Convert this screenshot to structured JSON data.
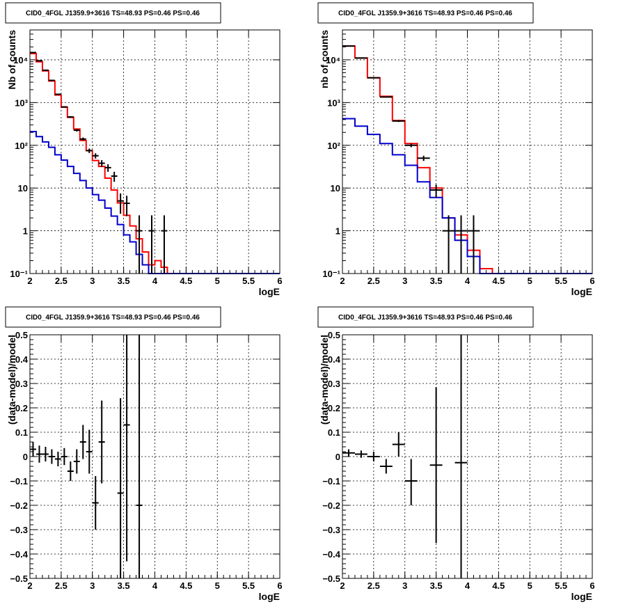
{
  "canvas": {
    "background": "#ffffff"
  },
  "colors": {
    "data": "#000000",
    "total_model": "#ff0000",
    "component_model": "#0000cc"
  },
  "chart_data": [
    {
      "type": "line",
      "title": "CID0_4FGL J1359.9+3616 TS=48.93 PS=0.46 PS=0.46",
      "xlabel": "logE",
      "ylabel": "Nb of counts",
      "xlim": [
        2,
        6
      ],
      "ylim": [
        0.1,
        50000
      ],
      "yscale": "log",
      "grid": true,
      "x_ticks": [
        2,
        2.5,
        3,
        3.5,
        4,
        4.5,
        5,
        5.5,
        6
      ],
      "x_tick_labels": [
        "2",
        "2.5",
        "3",
        "3.5",
        "4",
        "4.5",
        "5",
        "5.5",
        "6"
      ],
      "y_ticks": [
        0.1,
        1,
        10,
        100,
        1000,
        10000
      ],
      "y_tick_labels": [
        "10⁻¹",
        "1",
        "10",
        "10²",
        "10³",
        "10⁴"
      ],
      "bin_edges": [
        2.0,
        2.1,
        2.2,
        2.3,
        2.4,
        2.5,
        2.6,
        2.7,
        2.8,
        2.9,
        3.0,
        3.1,
        3.2,
        3.3,
        3.4,
        3.5,
        3.6,
        3.7,
        3.8,
        3.9,
        4.0,
        4.1,
        4.2,
        4.3,
        4.4,
        4.5,
        4.6,
        4.7,
        4.8,
        4.9,
        5.0,
        5.1,
        5.2,
        5.3,
        5.4,
        5.5,
        5.6,
        5.7,
        5.8,
        5.9,
        6.0
      ],
      "series": [
        {
          "role": "total_model",
          "values": [
            14000,
            9000,
            5500,
            3200,
            1500,
            780,
            450,
            240,
            130,
            75,
            44,
            32,
            17,
            9,
            4.5,
            2.3,
            1.3,
            0.65,
            0.32,
            0.16,
            0.2,
            0.14,
            0.1,
            0.1,
            0.1,
            0.1,
            0.1,
            0.1,
            0.1,
            0.1,
            0.1,
            0.1,
            0.1,
            0.1,
            0.1,
            0.1,
            0.1,
            0.1,
            0.1,
            0.1
          ]
        },
        {
          "role": "component_model",
          "values": [
            210,
            160,
            120,
            90,
            60,
            45,
            32,
            22,
            15,
            10,
            7,
            5.2,
            3.4,
            2.2,
            1.4,
            0.8,
            0.55,
            0.28,
            0.16,
            0.1,
            0.1,
            0.1,
            0.1,
            0.1,
            0.1,
            0.1,
            0.1,
            0.1,
            0.1,
            0.1,
            0.1,
            0.1,
            0.1,
            0.1,
            0.1,
            0.1,
            0.1,
            0.1,
            0.1,
            0.1
          ]
        },
        {
          "role": "data",
          "x": [
            2.05,
            2.15,
            2.25,
            2.35,
            2.45,
            2.55,
            2.65,
            2.75,
            2.85,
            2.95,
            3.05,
            3.15,
            3.25,
            3.35,
            3.45,
            3.55,
            3.75,
            3.95,
            4.15
          ],
          "y": [
            14800,
            9500,
            5700,
            3300,
            1560,
            790,
            460,
            225,
            140,
            75,
            57,
            38,
            30,
            19,
            5,
            4.4,
            1,
            1,
            1
          ],
          "yerr_low": [
            120,
            100,
            75,
            58,
            40,
            28,
            21,
            15,
            12,
            9,
            8,
            7,
            6,
            5,
            2.5,
            2.2,
            0.9,
            0.9,
            0.9
          ],
          "yerr_high": [
            120,
            100,
            75,
            58,
            40,
            28,
            21,
            15,
            12,
            9,
            8,
            7,
            6,
            5,
            2.5,
            2.2,
            1.3,
            1.3,
            1.3
          ]
        }
      ]
    },
    {
      "type": "line",
      "title": "CID0_4FGL J1359.9+3616 TS=48.93 PS=0.46 PS=0.46",
      "xlabel": "logE",
      "ylabel": "nb of counts",
      "xlim": [
        2,
        6
      ],
      "ylim": [
        0.1,
        50000
      ],
      "yscale": "log",
      "grid": true,
      "x_ticks": [
        2,
        2.5,
        3,
        3.5,
        4,
        4.5,
        5,
        5.5,
        6
      ],
      "x_tick_labels": [
        "2",
        "2.5",
        "3",
        "3.5",
        "4",
        "4.5",
        "5",
        "5.5",
        "6"
      ],
      "y_ticks": [
        0.1,
        1,
        10,
        100,
        1000,
        10000
      ],
      "y_tick_labels": [
        "10⁻¹",
        "1",
        "10",
        "10²",
        "10³",
        "10⁴"
      ],
      "bin_edges": [
        2.0,
        2.2,
        2.4,
        2.6,
        2.8,
        3.0,
        3.2,
        3.4,
        3.6,
        3.8,
        4.0,
        4.2,
        4.4,
        4.6,
        4.8,
        5.0,
        5.2,
        5.4,
        5.6,
        5.8,
        6.0
      ],
      "series": [
        {
          "role": "total_model",
          "values": [
            21000,
            11000,
            3800,
            1400,
            380,
            110,
            30,
            10,
            2,
            0.8,
            0.35,
            0.13,
            0.1,
            0.1,
            0.1,
            0.1,
            0.1,
            0.1,
            0.1,
            0.1
          ]
        },
        {
          "role": "component_model",
          "values": [
            420,
            280,
            180,
            110,
            60,
            34,
            14,
            6,
            2,
            0.6,
            0.25,
            0.1,
            0.1,
            0.1,
            0.1,
            0.1,
            0.1,
            0.1,
            0.1,
            0.1
          ]
        },
        {
          "role": "data",
          "x": [
            2.1,
            2.3,
            2.5,
            2.7,
            2.9,
            3.1,
            3.3,
            3.5,
            3.7,
            3.9,
            4.1
          ],
          "y": [
            21000,
            11000,
            3800,
            1350,
            370,
            100,
            50,
            9,
            1,
            1,
            1
          ],
          "yerr_low": [
            145,
            105,
            62,
            37,
            19,
            10,
            7,
            3,
            0.9,
            0.9,
            0.9
          ],
          "yerr_high": [
            145,
            105,
            62,
            37,
            19,
            10,
            7,
            3,
            1.3,
            1.3,
            1.3
          ]
        }
      ]
    },
    {
      "type": "scatter",
      "title": "CID0_4FGL J1359.9+3616 TS=48.93 PS=0.46 PS=0.46",
      "xlabel": "logE",
      "ylabel": "(data-model)/model",
      "xlim": [
        2,
        6
      ],
      "ylim": [
        -0.5,
        0.5
      ],
      "grid": true,
      "x_ticks": [
        2,
        2.5,
        3,
        3.5,
        4,
        4.5,
        5,
        5.5,
        6
      ],
      "x_tick_labels": [
        "2",
        "2.5",
        "3",
        "3.5",
        "4",
        "4.5",
        "5",
        "5.5",
        "6"
      ],
      "y_ticks": [
        -0.5,
        -0.4,
        -0.3,
        -0.2,
        -0.1,
        0,
        0.1,
        0.2,
        0.3,
        0.4,
        0.5
      ],
      "y_tick_labels": [
        "−0.5",
        "−0.4",
        "−0.3",
        "−0.2",
        "−0.1",
        "0",
        "0.1",
        "0.2",
        "0.3",
        "0.4",
        "0.5"
      ],
      "points": {
        "x": [
          2.05,
          2.15,
          2.25,
          2.35,
          2.45,
          2.55,
          2.65,
          2.75,
          2.85,
          2.95,
          3.05,
          3.15,
          3.45,
          3.55,
          3.75
        ],
        "xerr": 0.05,
        "y": [
          0.03,
          0.01,
          0.01,
          0.0,
          -0.01,
          0.0,
          -0.06,
          -0.02,
          0.06,
          0.02,
          -0.19,
          0.06,
          -0.15,
          0.13,
          -0.2
        ],
        "yerr_low": [
          0.03,
          0.035,
          0.03,
          0.03,
          0.03,
          0.035,
          0.04,
          0.05,
          0.07,
          0.09,
          0.11,
          0.17,
          0.4,
          0.56,
          0.3
        ],
        "yerr_high": [
          0.03,
          0.035,
          0.03,
          0.03,
          0.03,
          0.035,
          0.04,
          0.05,
          0.07,
          0.09,
          0.11,
          0.17,
          0.39,
          0.37,
          0.7
        ]
      }
    },
    {
      "type": "scatter",
      "title": "CID0_4FGL J1359.9+3616 TS=48.93 PS=0.46 PS=0.46",
      "xlabel": "logE",
      "ylabel": "(data-model)/model",
      "xlim": [
        2,
        6
      ],
      "ylim": [
        -0.5,
        0.5
      ],
      "grid": true,
      "x_ticks": [
        2,
        2.5,
        3,
        3.5,
        4,
        4.5,
        5,
        5.5,
        6
      ],
      "x_tick_labels": [
        "2",
        "2.5",
        "3",
        "3.5",
        "4",
        "4.5",
        "5",
        "5.5",
        "6"
      ],
      "y_ticks": [
        -0.5,
        -0.4,
        -0.3,
        -0.2,
        -0.1,
        0,
        0.1,
        0.2,
        0.3,
        0.4,
        0.5
      ],
      "y_tick_labels": [
        "−0.5",
        "−0.4",
        "−0.3",
        "−0.2",
        "−0.1",
        "0",
        "0.1",
        "0.2",
        "0.3",
        "0.4",
        "0.5"
      ],
      "points": {
        "x": [
          2.1,
          2.3,
          2.5,
          2.7,
          2.9,
          3.1,
          3.5,
          3.9
        ],
        "xerr": 0.1,
        "y": [
          0.015,
          0.01,
          0.0,
          -0.04,
          0.05,
          -0.1,
          -0.035,
          -0.025
        ],
        "yerr_low": [
          0.015,
          0.015,
          0.02,
          0.03,
          0.05,
          0.1,
          0.32,
          0.475
        ],
        "yerr_high": [
          0.015,
          0.015,
          0.02,
          0.03,
          0.05,
          0.09,
          0.32,
          0.525
        ]
      }
    }
  ]
}
